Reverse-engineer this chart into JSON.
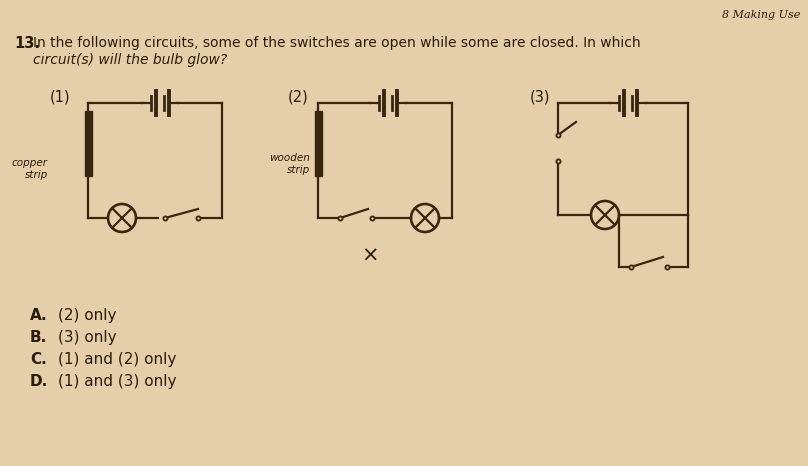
{
  "bg_color": "#e5ceaa",
  "page_label": "8 Making Use",
  "question_number": "13.",
  "question_line1": "In the following circuits, some of the switches are open while some are closed. In which",
  "question_line2": "circuit(s) will the bulb glow?",
  "lc": "#3a2510",
  "tc": "#2a1a08",
  "answers": [
    "A.",
    "B.",
    "C.",
    "D."
  ],
  "answer_texts": [
    "(2) only",
    "(3) only",
    "(1) and (2) only",
    "(1) and (3) only"
  ],
  "c1_label": "(1)",
  "c2_label": "(2)",
  "c3_label": "(3)",
  "c1_note": "copper\nstrip",
  "c2_note": "wooden\nstrip"
}
